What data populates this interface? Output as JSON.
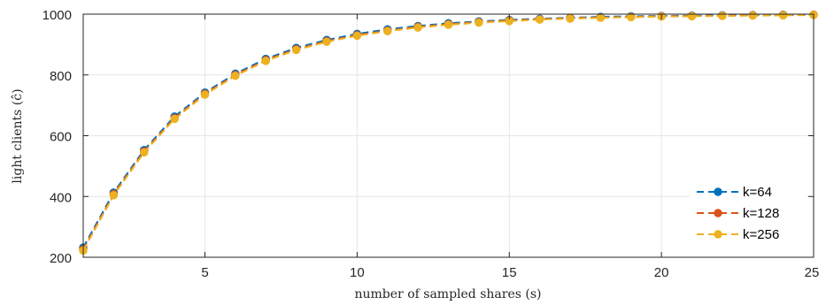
{
  "chart_data": {
    "type": "line",
    "xlabel": "number of sampled shares (s)",
    "ylabel": "light clients (ĉ)",
    "xlim": [
      1,
      25
    ],
    "ylim": [
      200,
      1000
    ],
    "xticks": [
      5,
      10,
      15,
      20,
      25
    ],
    "yticks": [
      200,
      400,
      600,
      800,
      1000
    ],
    "grid": true,
    "legend_position": "bottom-right",
    "x": [
      1,
      2,
      3,
      4,
      5,
      6,
      7,
      8,
      9,
      10,
      11,
      12,
      13,
      14,
      15,
      16,
      17,
      18,
      19,
      20,
      21,
      22,
      23,
      24,
      25
    ],
    "series": [
      {
        "name": "k=64",
        "color": "#0072BD",
        "values": [
          232,
          413,
          553,
          663,
          742,
          804,
          853,
          889,
          915,
          935,
          950,
          961,
          970,
          976,
          981,
          985,
          988,
          991,
          993,
          994,
          995,
          996,
          997,
          998,
          998
        ]
      },
      {
        "name": "k=128",
        "color": "#D95319",
        "values": [
          226,
          408,
          548,
          658,
          738,
          800,
          849,
          885,
          911,
          931,
          946,
          958,
          967,
          974,
          979,
          983,
          987,
          989,
          991,
          993,
          994,
          995,
          996,
          997,
          998
        ]
      },
      {
        "name": "k=256",
        "color": "#EDB120",
        "values": [
          222,
          404,
          545,
          655,
          735,
          797,
          846,
          882,
          909,
          929,
          944,
          956,
          965,
          972,
          977,
          982,
          985,
          988,
          990,
          992,
          993,
          994,
          995,
          996,
          997
        ]
      }
    ]
  }
}
